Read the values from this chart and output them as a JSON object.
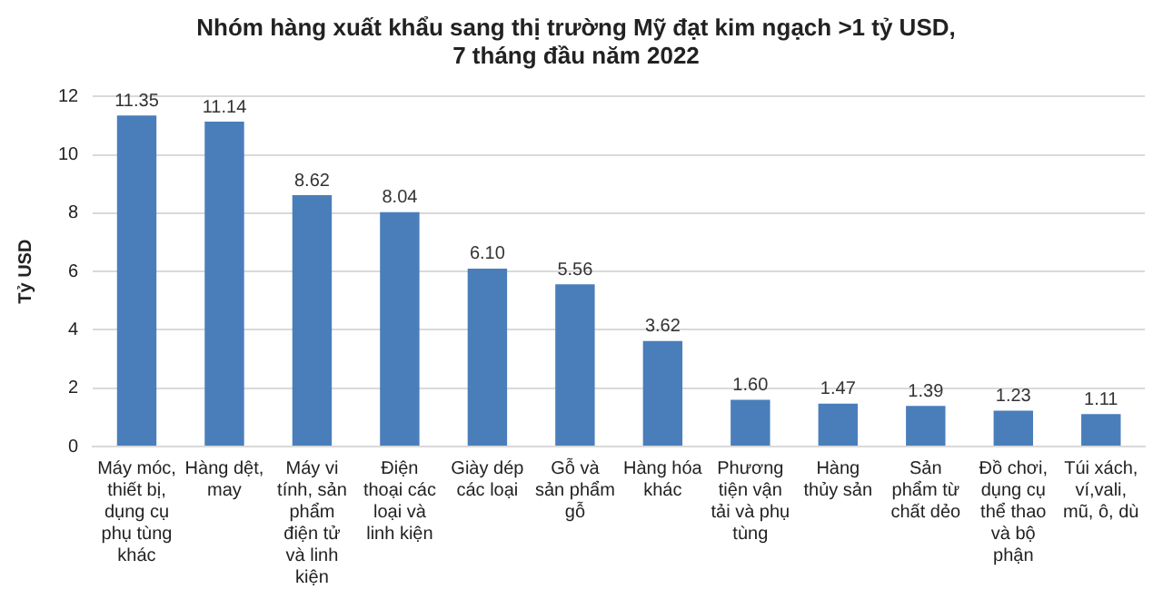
{
  "chart_data": {
    "type": "bar",
    "title": "Nhóm hàng xuất khẩu sang thị trường Mỹ đạt kim ngạch >1 tỷ USD,\n7 tháng đầu năm 2022",
    "ylabel": "Tỷ USD",
    "categories": [
      "Máy móc, thiết bị, dụng cụ phụ tùng khác",
      "Hàng dệt, may",
      "Máy vi tính, sản phẩm điện tử và linh kiện",
      "Điện thoại các loại và linh kiện",
      "Giày dép các loại",
      "Gỗ và sản phẩm gỗ",
      "Hàng hóa khác",
      "Phương tiện vận tải và phụ tùng",
      "Hàng thủy sản",
      "Sản phẩm từ chất dẻo",
      "Đồ chơi, dụng cụ thể thao và bộ phận",
      "Túi xách, ví,vali, mũ, ô, dù"
    ],
    "values": [
      11.35,
      11.14,
      8.62,
      8.04,
      6.1,
      5.56,
      3.62,
      1.6,
      1.47,
      1.39,
      1.23,
      1.11
    ],
    "value_labels": [
      "11.35",
      "11.14",
      "8.62",
      "8.04",
      "6.10",
      "5.56",
      "3.62",
      "1.60",
      "1.47",
      "1.39",
      "1.23",
      "1.11"
    ],
    "color": "#4a7ebb",
    "ylim": [
      0,
      12
    ],
    "yticks": [
      0,
      2,
      4,
      6,
      8,
      10,
      12
    ],
    "grid": "y"
  }
}
